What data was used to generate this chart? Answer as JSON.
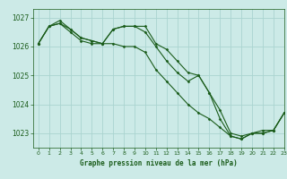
{
  "title": "Graphe pression niveau de la mer (hPa)",
  "background_color": "#cceae7",
  "grid_color": "#aad4d0",
  "line_color": "#1a5c1a",
  "xlim": [
    -0.5,
    23
  ],
  "ylim": [
    1022.5,
    1027.3
  ],
  "yticks": [
    1023,
    1024,
    1025,
    1026,
    1027
  ],
  "xticks": [
    0,
    1,
    2,
    3,
    4,
    5,
    6,
    7,
    8,
    9,
    10,
    11,
    12,
    13,
    14,
    15,
    16,
    17,
    18,
    19,
    20,
    21,
    22,
    23
  ],
  "series": [
    [
      1026.1,
      1026.7,
      1026.8,
      1026.6,
      1026.3,
      1026.2,
      1026.1,
      1026.6,
      1026.7,
      1026.7,
      1026.7,
      1026.1,
      1025.9,
      1025.5,
      1025.1,
      1025.0,
      1024.4,
      1023.8,
      1023.0,
      1022.9,
      1023.0,
      1023.0,
      1023.1,
      1023.7
    ],
    [
      1026.1,
      1026.7,
      1026.8,
      1026.5,
      1026.2,
      1026.1,
      1026.1,
      1026.1,
      1026.0,
      1026.0,
      1025.8,
      1025.2,
      1024.8,
      1024.4,
      1024.0,
      1023.7,
      1023.5,
      1023.2,
      1022.9,
      1022.8,
      1023.0,
      1023.1,
      1023.1,
      1023.7
    ],
    [
      1026.1,
      1026.7,
      1026.9,
      1026.6,
      1026.3,
      1026.2,
      1026.1,
      1026.6,
      1026.7,
      1026.7,
      1026.5,
      1026.0,
      1025.5,
      1025.1,
      1024.8,
      1025.0,
      1024.4,
      1023.5,
      1022.9,
      1022.8,
      1023.0,
      1023.0,
      1023.1,
      1023.7
    ]
  ]
}
